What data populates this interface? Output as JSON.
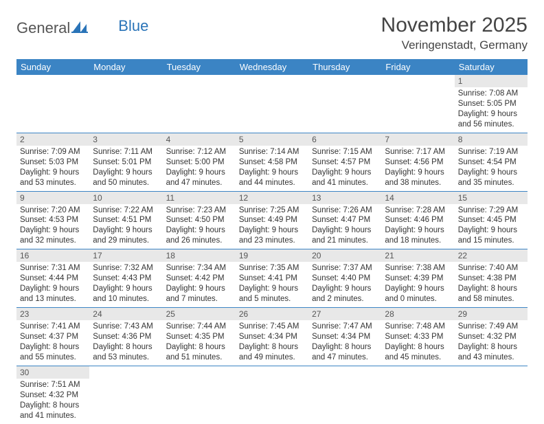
{
  "logo": {
    "general": "General",
    "blue": "Blue"
  },
  "title": "November 2025",
  "location": "Veringenstadt, Germany",
  "weekdays": [
    "Sunday",
    "Monday",
    "Tuesday",
    "Wednesday",
    "Thursday",
    "Friday",
    "Saturday"
  ],
  "colors": {
    "header_bg": "#3b84c4",
    "daynum_bg": "#e8e8e8",
    "border": "#3b84c4",
    "logo_blue": "#2a74b8"
  },
  "weeks": [
    [
      {
        "n": "",
        "sr": "",
        "ss": "",
        "dl": ""
      },
      {
        "n": "",
        "sr": "",
        "ss": "",
        "dl": ""
      },
      {
        "n": "",
        "sr": "",
        "ss": "",
        "dl": ""
      },
      {
        "n": "",
        "sr": "",
        "ss": "",
        "dl": ""
      },
      {
        "n": "",
        "sr": "",
        "ss": "",
        "dl": ""
      },
      {
        "n": "",
        "sr": "",
        "ss": "",
        "dl": ""
      },
      {
        "n": "1",
        "sr": "Sunrise: 7:08 AM",
        "ss": "Sunset: 5:05 PM",
        "dl": "Daylight: 9 hours and 56 minutes."
      }
    ],
    [
      {
        "n": "2",
        "sr": "Sunrise: 7:09 AM",
        "ss": "Sunset: 5:03 PM",
        "dl": "Daylight: 9 hours and 53 minutes."
      },
      {
        "n": "3",
        "sr": "Sunrise: 7:11 AM",
        "ss": "Sunset: 5:01 PM",
        "dl": "Daylight: 9 hours and 50 minutes."
      },
      {
        "n": "4",
        "sr": "Sunrise: 7:12 AM",
        "ss": "Sunset: 5:00 PM",
        "dl": "Daylight: 9 hours and 47 minutes."
      },
      {
        "n": "5",
        "sr": "Sunrise: 7:14 AM",
        "ss": "Sunset: 4:58 PM",
        "dl": "Daylight: 9 hours and 44 minutes."
      },
      {
        "n": "6",
        "sr": "Sunrise: 7:15 AM",
        "ss": "Sunset: 4:57 PM",
        "dl": "Daylight: 9 hours and 41 minutes."
      },
      {
        "n": "7",
        "sr": "Sunrise: 7:17 AM",
        "ss": "Sunset: 4:56 PM",
        "dl": "Daylight: 9 hours and 38 minutes."
      },
      {
        "n": "8",
        "sr": "Sunrise: 7:19 AM",
        "ss": "Sunset: 4:54 PM",
        "dl": "Daylight: 9 hours and 35 minutes."
      }
    ],
    [
      {
        "n": "9",
        "sr": "Sunrise: 7:20 AM",
        "ss": "Sunset: 4:53 PM",
        "dl": "Daylight: 9 hours and 32 minutes."
      },
      {
        "n": "10",
        "sr": "Sunrise: 7:22 AM",
        "ss": "Sunset: 4:51 PM",
        "dl": "Daylight: 9 hours and 29 minutes."
      },
      {
        "n": "11",
        "sr": "Sunrise: 7:23 AM",
        "ss": "Sunset: 4:50 PM",
        "dl": "Daylight: 9 hours and 26 minutes."
      },
      {
        "n": "12",
        "sr": "Sunrise: 7:25 AM",
        "ss": "Sunset: 4:49 PM",
        "dl": "Daylight: 9 hours and 23 minutes."
      },
      {
        "n": "13",
        "sr": "Sunrise: 7:26 AM",
        "ss": "Sunset: 4:47 PM",
        "dl": "Daylight: 9 hours and 21 minutes."
      },
      {
        "n": "14",
        "sr": "Sunrise: 7:28 AM",
        "ss": "Sunset: 4:46 PM",
        "dl": "Daylight: 9 hours and 18 minutes."
      },
      {
        "n": "15",
        "sr": "Sunrise: 7:29 AM",
        "ss": "Sunset: 4:45 PM",
        "dl": "Daylight: 9 hours and 15 minutes."
      }
    ],
    [
      {
        "n": "16",
        "sr": "Sunrise: 7:31 AM",
        "ss": "Sunset: 4:44 PM",
        "dl": "Daylight: 9 hours and 13 minutes."
      },
      {
        "n": "17",
        "sr": "Sunrise: 7:32 AM",
        "ss": "Sunset: 4:43 PM",
        "dl": "Daylight: 9 hours and 10 minutes."
      },
      {
        "n": "18",
        "sr": "Sunrise: 7:34 AM",
        "ss": "Sunset: 4:42 PM",
        "dl": "Daylight: 9 hours and 7 minutes."
      },
      {
        "n": "19",
        "sr": "Sunrise: 7:35 AM",
        "ss": "Sunset: 4:41 PM",
        "dl": "Daylight: 9 hours and 5 minutes."
      },
      {
        "n": "20",
        "sr": "Sunrise: 7:37 AM",
        "ss": "Sunset: 4:40 PM",
        "dl": "Daylight: 9 hours and 2 minutes."
      },
      {
        "n": "21",
        "sr": "Sunrise: 7:38 AM",
        "ss": "Sunset: 4:39 PM",
        "dl": "Daylight: 9 hours and 0 minutes."
      },
      {
        "n": "22",
        "sr": "Sunrise: 7:40 AM",
        "ss": "Sunset: 4:38 PM",
        "dl": "Daylight: 8 hours and 58 minutes."
      }
    ],
    [
      {
        "n": "23",
        "sr": "Sunrise: 7:41 AM",
        "ss": "Sunset: 4:37 PM",
        "dl": "Daylight: 8 hours and 55 minutes."
      },
      {
        "n": "24",
        "sr": "Sunrise: 7:43 AM",
        "ss": "Sunset: 4:36 PM",
        "dl": "Daylight: 8 hours and 53 minutes."
      },
      {
        "n": "25",
        "sr": "Sunrise: 7:44 AM",
        "ss": "Sunset: 4:35 PM",
        "dl": "Daylight: 8 hours and 51 minutes."
      },
      {
        "n": "26",
        "sr": "Sunrise: 7:45 AM",
        "ss": "Sunset: 4:34 PM",
        "dl": "Daylight: 8 hours and 49 minutes."
      },
      {
        "n": "27",
        "sr": "Sunrise: 7:47 AM",
        "ss": "Sunset: 4:34 PM",
        "dl": "Daylight: 8 hours and 47 minutes."
      },
      {
        "n": "28",
        "sr": "Sunrise: 7:48 AM",
        "ss": "Sunset: 4:33 PM",
        "dl": "Daylight: 8 hours and 45 minutes."
      },
      {
        "n": "29",
        "sr": "Sunrise: 7:49 AM",
        "ss": "Sunset: 4:32 PM",
        "dl": "Daylight: 8 hours and 43 minutes."
      }
    ],
    [
      {
        "n": "30",
        "sr": "Sunrise: 7:51 AM",
        "ss": "Sunset: 4:32 PM",
        "dl": "Daylight: 8 hours and 41 minutes."
      },
      {
        "n": "",
        "sr": "",
        "ss": "",
        "dl": ""
      },
      {
        "n": "",
        "sr": "",
        "ss": "",
        "dl": ""
      },
      {
        "n": "",
        "sr": "",
        "ss": "",
        "dl": ""
      },
      {
        "n": "",
        "sr": "",
        "ss": "",
        "dl": ""
      },
      {
        "n": "",
        "sr": "",
        "ss": "",
        "dl": ""
      },
      {
        "n": "",
        "sr": "",
        "ss": "",
        "dl": ""
      }
    ]
  ]
}
